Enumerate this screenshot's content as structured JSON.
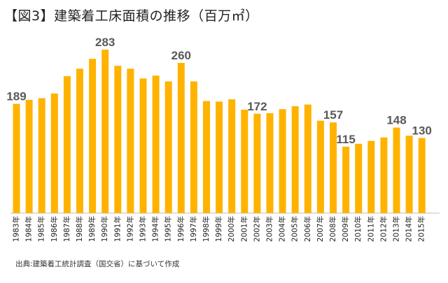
{
  "title": "【図3】建築着工床面積の推移（百万㎡）",
  "source": "出典:建築着工統計調査（国交省）に基づいて作成",
  "chart_data": {
    "type": "bar",
    "categories": [
      "1983年",
      "1984年",
      "1985年",
      "1986年",
      "1987年",
      "1988年",
      "1989年",
      "1990年",
      "1991年",
      "1992年",
      "1993年",
      "1994年",
      "1995年",
      "1996年",
      "1997年",
      "1998年",
      "1999年",
      "2000年",
      "2001年",
      "2002年",
      "2003年",
      "2004年",
      "2005年",
      "2006年",
      "2007年",
      "2008年",
      "2009年",
      "2010年",
      "2011年",
      "2012年",
      "2013年",
      "2014年",
      "2015年"
    ],
    "values": [
      189,
      196,
      199,
      207,
      237,
      250,
      267,
      283,
      255,
      250,
      233,
      238,
      228,
      260,
      228,
      194,
      193,
      197,
      179,
      172,
      173,
      180,
      185,
      188,
      160,
      157,
      115,
      120,
      125,
      131,
      148,
      134,
      130
    ],
    "data_labels": {
      "1983年": "189",
      "1990年": "283",
      "1996年": "260",
      "2002年": "172",
      "2008年": "157",
      "2009年": "115",
      "2013年": "148",
      "2015年": "130"
    },
    "bar_color": "#FFB300",
    "ylim": [
      0,
      300
    ],
    "grid": false,
    "legend": "none"
  }
}
